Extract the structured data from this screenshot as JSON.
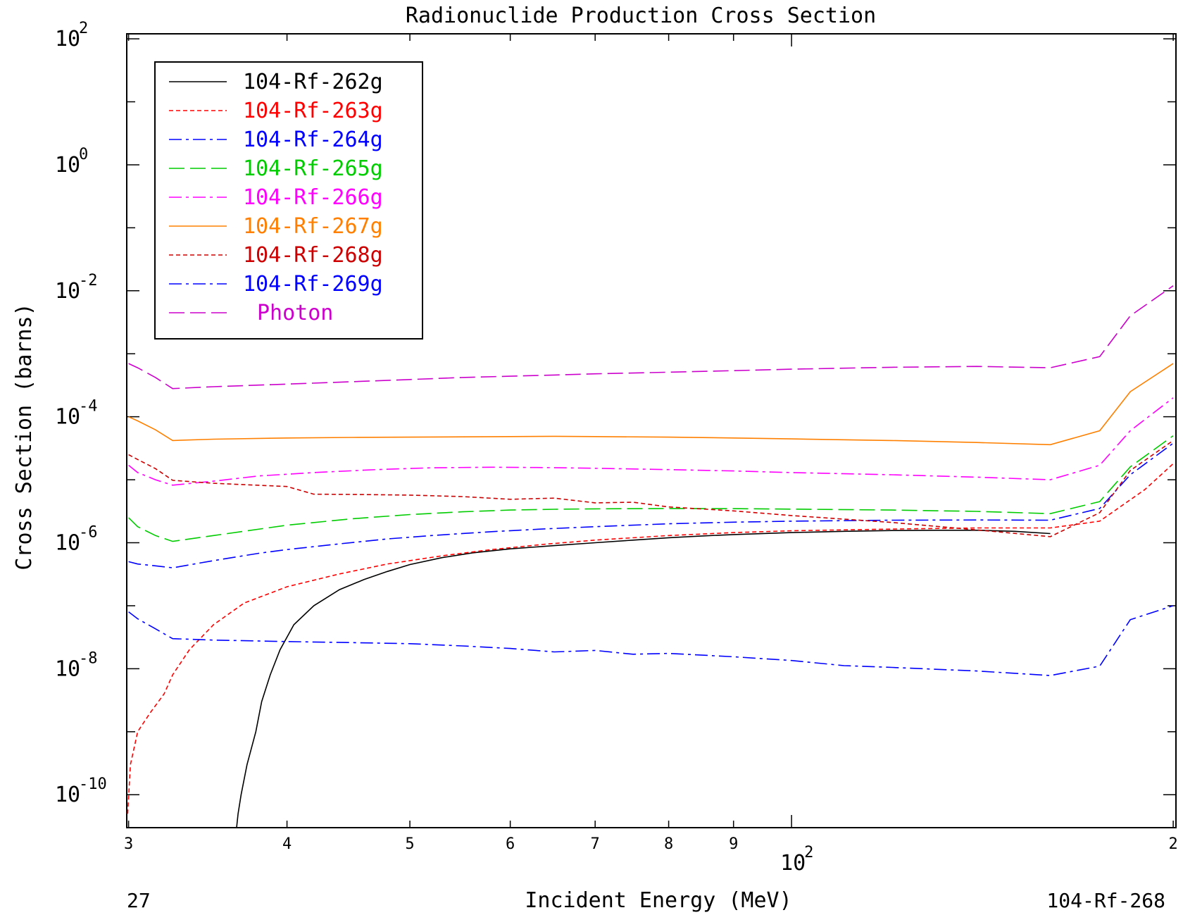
{
  "chart_data": {
    "type": "line",
    "title": "Radionuclide Production Cross Section",
    "xlabel": "Incident Energy (MeV)",
    "ylabel": "Cross Section (barns)",
    "x_scale": "log",
    "y_scale": "log",
    "xlim": [
      29.9,
      201
    ],
    "ylim": [
      3e-11,
      120
    ],
    "grid": false,
    "legend_position": "top-left",
    "corner_left": "27",
    "corner_right": "104-Rf-268",
    "x_ticks": [
      {
        "value": 30,
        "label": "3"
      },
      {
        "value": 40,
        "label": "4"
      },
      {
        "value": 50,
        "label": "5"
      },
      {
        "value": 60,
        "label": "6"
      },
      {
        "value": 70,
        "label": "7"
      },
      {
        "value": 80,
        "label": "8"
      },
      {
        "value": 90,
        "label": "9"
      },
      {
        "value": 200,
        "label": "2"
      }
    ],
    "x_decade_label": {
      "value": 100,
      "base": "10",
      "exponent": "2"
    },
    "y_ticks": [
      {
        "value": 100,
        "base": "10",
        "exponent": "2"
      },
      {
        "value": 1,
        "base": "10",
        "exponent": "0"
      },
      {
        "value": 0.01,
        "base": "10",
        "exponent": "-2"
      },
      {
        "value": 0.0001,
        "base": "10",
        "exponent": "-4"
      },
      {
        "value": 1e-06,
        "base": "10",
        "exponent": "-6"
      },
      {
        "value": 1e-08,
        "base": "10",
        "exponent": "-8"
      },
      {
        "value": 1e-10,
        "base": "10",
        "exponent": "-10"
      }
    ],
    "series": [
      {
        "name": "104-Rf-262g",
        "color": "#000000",
        "dash": "solid",
        "x": [
          36.5,
          36.6,
          36.8,
          37.2,
          37.8,
          38.2,
          38.8,
          39.5,
          40.5,
          42,
          44,
          46,
          48,
          50,
          53,
          56,
          60,
          65,
          70,
          75,
          80,
          85,
          90,
          100,
          110,
          120,
          130,
          140,
          150,
          160
        ],
        "y": [
          3e-11,
          5e-11,
          1e-10,
          3e-10,
          1e-09,
          3e-09,
          8e-09,
          2e-08,
          5e-08,
          1e-07,
          1.8e-07,
          2.6e-07,
          3.5e-07,
          4.5e-07,
          5.8e-07,
          6.9e-07,
          8e-07,
          9e-07,
          1e-06,
          1.1e-06,
          1.2e-06,
          1.28e-06,
          1.35e-06,
          1.45e-06,
          1.52e-06,
          1.56e-06,
          1.58e-06,
          1.58e-06,
          1.52e-06,
          1.4e-06
        ]
      },
      {
        "name": "104-Rf-263g",
        "color": "#ff0000",
        "dash": "short",
        "x": [
          29.95,
          30.1,
          30.5,
          31.2,
          32,
          32.5,
          33.5,
          35,
          37,
          40,
          44,
          48,
          53,
          58,
          64,
          70,
          80,
          90,
          100,
          120,
          140,
          160,
          175,
          190,
          200
        ],
        "y": [
          5e-11,
          3e-10,
          1e-09,
          2e-09,
          4e-09,
          8e-09,
          2e-08,
          5e-08,
          1.1e-07,
          2e-07,
          3.2e-07,
          4.6e-07,
          6.2e-07,
          7.8e-07,
          9.5e-07,
          1.1e-06,
          1.3e-06,
          1.45e-06,
          1.55e-06,
          1.65e-06,
          1.72e-06,
          1.72e-06,
          2.2e-06,
          7e-06,
          1.8e-05
        ]
      },
      {
        "name": "104-Rf-264g",
        "color": "#0000ff",
        "dash": "dashdot",
        "x": [
          30,
          30.5,
          31.5,
          32.5,
          35,
          38,
          40,
          44,
          48,
          52,
          58,
          64,
          70,
          80,
          90,
          100,
          120,
          140,
          160,
          175,
          185,
          200
        ],
        "y": [
          5e-07,
          4.6e-07,
          4.3e-07,
          4e-07,
          5.2e-07,
          6.8e-07,
          7.8e-07,
          9.6e-07,
          1.15e-06,
          1.3e-06,
          1.5e-06,
          1.66e-06,
          1.8e-06,
          2e-06,
          2.12e-06,
          2.2e-06,
          2.28e-06,
          2.3e-06,
          2.28e-06,
          3.5e-06,
          1.2e-05,
          3.8e-05
        ]
      },
      {
        "name": "104-Rf-265g",
        "color": "#00cc00",
        "dash": "longdash",
        "x": [
          30,
          30.5,
          31.5,
          32.5,
          35,
          40,
          45,
          50,
          55,
          60,
          65,
          70,
          80,
          90,
          100,
          120,
          140,
          160,
          175,
          185,
          200
        ],
        "y": [
          2.5e-06,
          1.8e-06,
          1.3e-06,
          1.05e-06,
          1.3e-06,
          1.9e-06,
          2.4e-06,
          2.8e-06,
          3.1e-06,
          3.3e-06,
          3.4e-06,
          3.45e-06,
          3.5e-06,
          3.48e-06,
          3.42e-06,
          3.3e-06,
          3.15e-06,
          2.9e-06,
          4.5e-06,
          1.6e-05,
          5e-05
        ]
      },
      {
        "name": "104-Rf-266g",
        "color": "#ff00ff",
        "dash": "dashdot",
        "x": [
          30,
          30.5,
          31.5,
          32.5,
          35,
          38,
          42,
          47,
          52,
          58,
          64,
          70,
          80,
          90,
          100,
          120,
          140,
          160,
          175,
          185,
          200
        ],
        "y": [
          1.7e-05,
          1.3e-05,
          1e-05,
          8.2e-06,
          9.5e-06,
          1.15e-05,
          1.3e-05,
          1.45e-05,
          1.55e-05,
          1.58e-05,
          1.56e-05,
          1.52e-05,
          1.45e-05,
          1.38e-05,
          1.3e-05,
          1.2e-05,
          1.1e-05,
          1e-05,
          1.7e-05,
          6e-05,
          0.0002
        ]
      },
      {
        "name": "104-Rf-267g",
        "color": "#ff8000",
        "dash": "solid",
        "x": [
          30,
          30.5,
          31.5,
          32.5,
          35,
          40,
          45,
          50,
          55,
          60,
          65,
          70,
          80,
          90,
          100,
          120,
          140,
          160,
          175,
          185,
          200
        ],
        "y": [
          0.0001,
          8.6e-05,
          6.2e-05,
          4.2e-05,
          4.4e-05,
          4.6e-05,
          4.7e-05,
          4.75e-05,
          4.8e-05,
          4.85e-05,
          4.9e-05,
          4.85e-05,
          4.75e-05,
          4.6e-05,
          4.45e-05,
          4.2e-05,
          3.9e-05,
          3.6e-05,
          6e-05,
          0.00025,
          0.0007
        ]
      },
      {
        "name": "104-Rf-268g",
        "color": "#cc0000",
        "dash": "short",
        "x": [
          30,
          30.5,
          31.5,
          32.5,
          35,
          40,
          42,
          45,
          50,
          55,
          60,
          65,
          70,
          75,
          80,
          90,
          100,
          120,
          140,
          160,
          175,
          185,
          200
        ],
        "y": [
          2.5e-05,
          2.1e-05,
          1.5e-05,
          9.8e-06,
          8.8e-06,
          7.8e-06,
          5.9e-06,
          5.85e-06,
          5.7e-06,
          5.4e-06,
          4.9e-06,
          5.1e-06,
          4.3e-06,
          4.4e-06,
          3.7e-06,
          3.2e-06,
          2.7e-06,
          2.1e-06,
          1.6e-06,
          1.25e-06,
          3e-06,
          1.4e-05,
          4.2e-05
        ]
      },
      {
        "name": "104-Rf-269g",
        "color": "#0000ff",
        "dash": "dashdot",
        "x": [
          30,
          30.5,
          31.5,
          32.5,
          35,
          40,
          45,
          50,
          55,
          60,
          65,
          70,
          75,
          80,
          90,
          100,
          110,
          120,
          140,
          160,
          175,
          185,
          200
        ],
        "y": [
          8e-08,
          6.2e-08,
          4.3e-08,
          3e-08,
          2.85e-08,
          2.7e-08,
          2.6e-08,
          2.5e-08,
          2.3e-08,
          2.1e-08,
          1.85e-08,
          1.95e-08,
          1.7e-08,
          1.75e-08,
          1.55e-08,
          1.35e-08,
          1.12e-08,
          1.05e-08,
          9.2e-09,
          7.8e-09,
          1.1e-08,
          6e-08,
          1e-07
        ]
      },
      {
        "name": "Photon",
        "color": "#cc00cc",
        "dash": "longdash",
        "x": [
          30,
          30.5,
          31.5,
          32.5,
          35,
          40,
          45,
          50,
          55,
          60,
          65,
          70,
          80,
          90,
          100,
          120,
          140,
          160,
          175,
          185,
          200
        ],
        "y": [
          0.0007,
          0.0006,
          0.00042,
          0.00028,
          0.0003,
          0.00033,
          0.00036,
          0.00039,
          0.00042,
          0.00044,
          0.00046,
          0.00048,
          0.00051,
          0.00054,
          0.00057,
          0.00061,
          0.00063,
          0.0006,
          0.0009,
          0.004,
          0.012
        ]
      }
    ]
  }
}
